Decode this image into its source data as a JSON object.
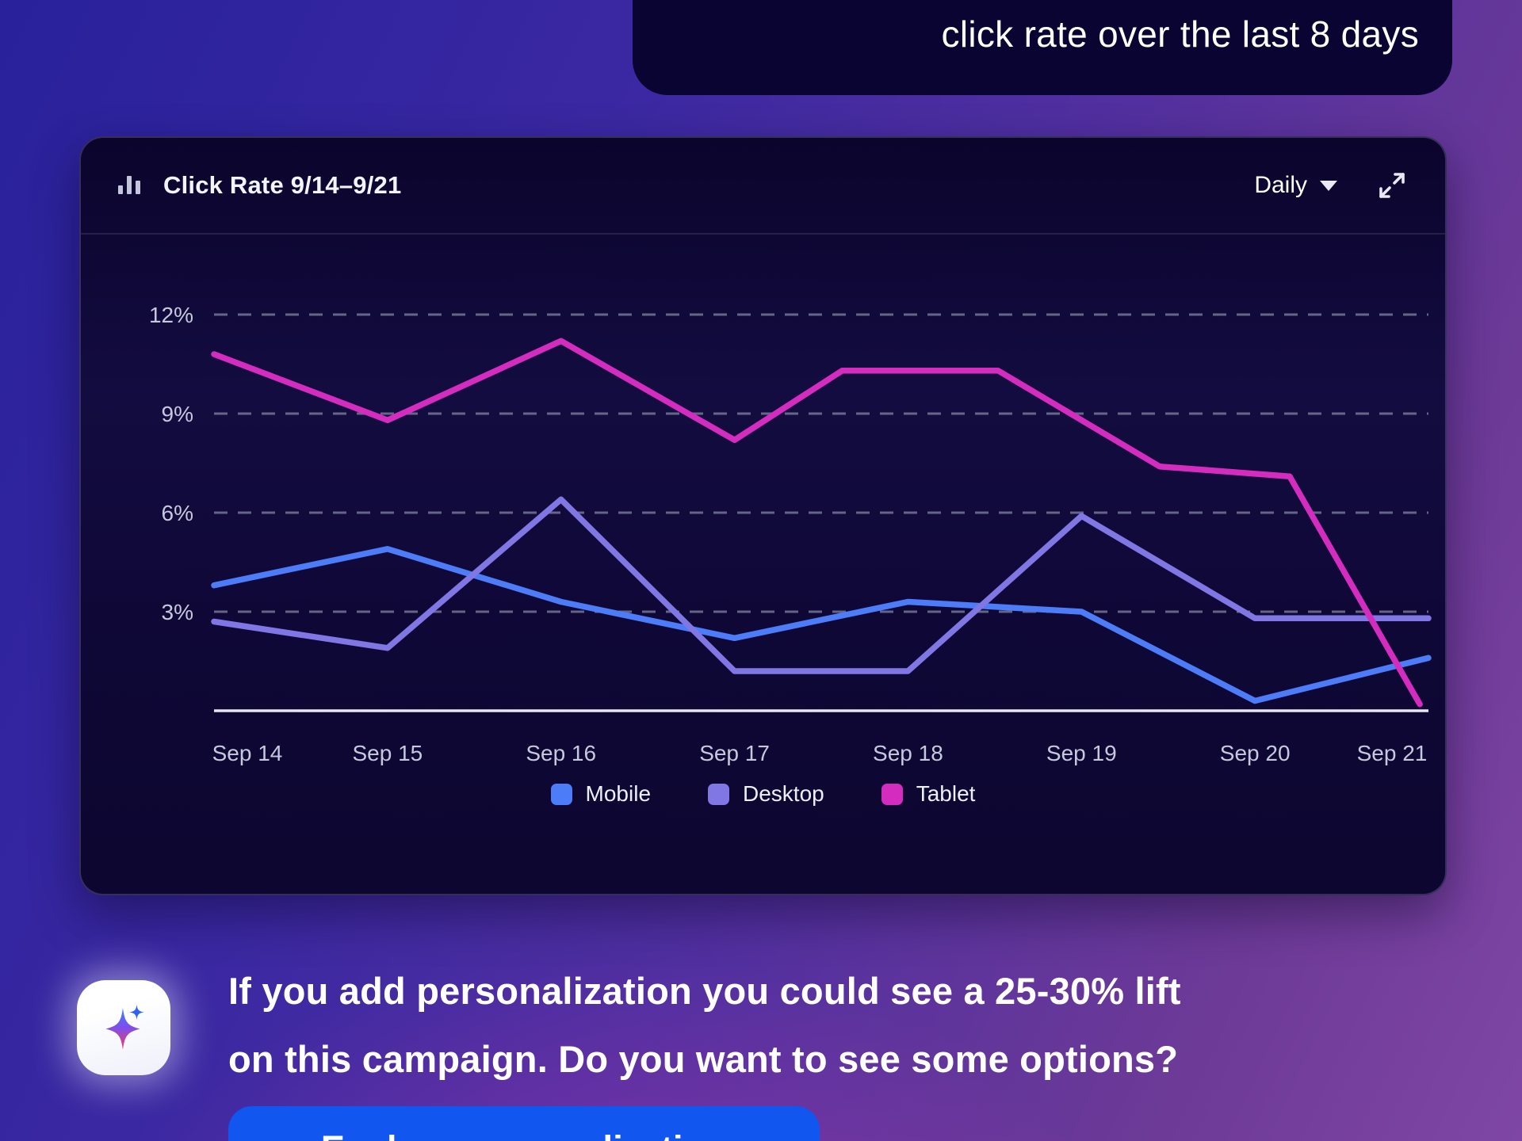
{
  "user_message": {
    "text": "click rate over the last 8 days"
  },
  "card": {
    "title": "Click Rate 9/14–9/21",
    "interval_label": "Daily"
  },
  "chart_data": {
    "type": "line",
    "title": "Click Rate 9/14–9/21",
    "categories": [
      "Sep 14",
      "Sep 15",
      "Sep 16",
      "Sep 17",
      "Sep 18",
      "Sep 19",
      "Sep 20",
      "Sep 21"
    ],
    "y_ticks_percent": [
      12,
      9,
      6,
      3
    ],
    "ylim": [
      0,
      13
    ],
    "grid": "horizontal-dashed",
    "legend_position": "bottom",
    "series": [
      {
        "name": "Mobile",
        "color": "#4D7CF8",
        "values": [
          3.8,
          4.9,
          3.3,
          2.2,
          3.3,
          3.0,
          0.3,
          1.6
        ]
      },
      {
        "name": "Desktop",
        "color": "#8076E4",
        "values": [
          2.7,
          1.9,
          6.4,
          1.2,
          1.2,
          5.9,
          2.8,
          2.8
        ]
      },
      {
        "name": "Tablet",
        "color": "#D52CC0",
        "values": [
          10.8,
          8.8,
          11.2,
          8.2,
          10.3,
          8.9,
          7.2,
          0.2
        ],
        "render_points": [
          [
            0,
            10.8
          ],
          [
            1,
            8.8
          ],
          [
            2,
            11.2
          ],
          [
            3,
            8.2
          ],
          [
            3.62,
            10.3
          ],
          [
            4.52,
            10.3
          ],
          [
            5.45,
            7.4
          ],
          [
            6.2,
            7.1
          ],
          [
            6.95,
            0.2
          ]
        ]
      }
    ]
  },
  "assistant": {
    "message_line1": "If you add personalization you could see a 25-30% lift",
    "message_line2": "on this campaign. Do you want to see some options?",
    "cta_label": "Explore personalization"
  },
  "colors": {
    "cta_blue": "#1156EE",
    "axis_text": "#c6c8dd",
    "gridline": "#aab0c8",
    "axis_line": "#e6e7f2"
  }
}
